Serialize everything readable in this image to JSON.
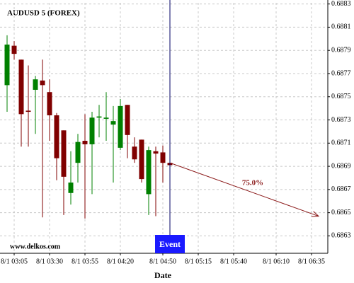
{
  "chart_data": {
    "type": "candlestick",
    "title": "AUDUSD 5 (FOREX)",
    "watermark": "www.delkos.com",
    "x_label": "Date",
    "x": [
      180,
      185,
      190,
      195,
      200,
      205,
      210,
      215,
      220,
      225,
      230,
      235,
      240,
      245,
      250,
      255,
      260,
      265,
      270,
      275,
      280,
      285,
      290,
      295
    ],
    "open": [
      0.6876,
      0.68794,
      0.68782,
      0.68738,
      0.68756,
      0.68764,
      0.68754,
      0.68734,
      0.68721,
      0.68667,
      0.68693,
      0.68712,
      0.68709,
      0.68732,
      0.68731,
      0.68726,
      0.68706,
      0.68743,
      0.68707,
      0.68713,
      0.68666,
      0.68703,
      0.68702,
      0.68693
    ],
    "high": [
      0.68803,
      0.68798,
      0.68782,
      0.68777,
      0.68768,
      0.68782,
      0.68765,
      0.68736,
      0.68721,
      0.68703,
      0.68718,
      0.68735,
      0.68737,
      0.68743,
      0.68754,
      0.68742,
      0.68748,
      0.68743,
      0.68715,
      0.68713,
      0.68707,
      0.68707,
      0.68708,
      0.6871
    ],
    "low": [
      0.68737,
      0.68782,
      0.68707,
      0.68707,
      0.68718,
      0.68646,
      0.68712,
      0.68678,
      0.68648,
      0.68657,
      0.68676,
      0.68645,
      0.68666,
      0.68715,
      0.68712,
      0.68676,
      0.68704,
      0.68697,
      0.68693,
      0.68676,
      0.68648,
      0.68647,
      0.68676,
      0.68656
    ],
    "close": [
      0.68795,
      0.68787,
      0.68735,
      0.68737,
      0.68765,
      0.6876,
      0.68734,
      0.68697,
      0.68681,
      0.68676,
      0.68711,
      0.68709,
      0.68732,
      0.68733,
      0.68732,
      0.68729,
      0.68742,
      0.68717,
      0.68696,
      0.68679,
      0.68704,
      0.68701,
      0.68693,
      0.68691
    ],
    "up_color": "#008000",
    "down_color": "#800000",
    "xlim": [
      175,
      406.5
    ],
    "xticks": [
      {
        "value": 185,
        "label": "8/1 03:05"
      },
      {
        "value": 210,
        "label": "8/1 03:30"
      },
      {
        "value": 235,
        "label": "8/1 03:55"
      },
      {
        "value": 260,
        "label": "8/1 04:20"
      },
      {
        "value": 290,
        "label": "8/1 04:50"
      },
      {
        "value": 315,
        "label": "8/1 05:15"
      },
      {
        "value": 340,
        "label": "8/1 05:40"
      },
      {
        "value": 370,
        "label": "8/1 06:10"
      },
      {
        "value": 395,
        "label": "8/1 06:35"
      }
    ],
    "ylim": [
      0.68615,
      0.68831
    ],
    "yticks": [
      0.6863,
      0.6865,
      0.6867,
      0.6869,
      0.6871,
      0.6873,
      0.6875,
      0.6877,
      0.6879,
      0.6881,
      0.6883
    ],
    "grid": true,
    "event": {
      "label": "Event",
      "x": 295,
      "color": "#1a1aff"
    },
    "forecast": {
      "label": "75.0%",
      "x": [
        295,
        400
      ],
      "y": [
        0.68693,
        0.68647
      ],
      "color": "#8b1a1a"
    }
  }
}
